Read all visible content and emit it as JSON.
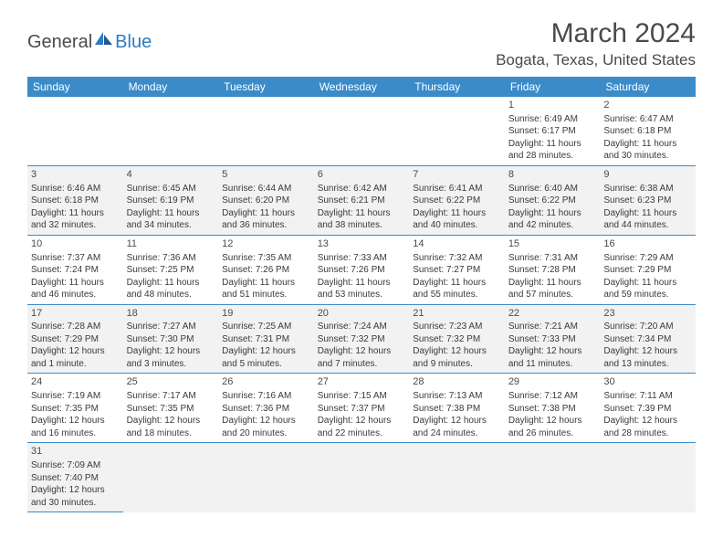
{
  "logo": {
    "text1": "General",
    "text2": "Blue"
  },
  "title": "March 2024",
  "location": "Bogata, Texas, United States",
  "header_bg": "#3b8bc9",
  "header_fg": "#ffffff",
  "row_alt_bg": "#f2f2f2",
  "border_color": "#3b8bc9",
  "daynames": [
    "Sunday",
    "Monday",
    "Tuesday",
    "Wednesday",
    "Thursday",
    "Friday",
    "Saturday"
  ],
  "weeks": [
    [
      null,
      null,
      null,
      null,
      null,
      {
        "d": "1",
        "sr": "6:49 AM",
        "ss": "6:17 PM",
        "dl": "11 hours and 28 minutes."
      },
      {
        "d": "2",
        "sr": "6:47 AM",
        "ss": "6:18 PM",
        "dl": "11 hours and 30 minutes."
      }
    ],
    [
      {
        "d": "3",
        "sr": "6:46 AM",
        "ss": "6:18 PM",
        "dl": "11 hours and 32 minutes."
      },
      {
        "d": "4",
        "sr": "6:45 AM",
        "ss": "6:19 PM",
        "dl": "11 hours and 34 minutes."
      },
      {
        "d": "5",
        "sr": "6:44 AM",
        "ss": "6:20 PM",
        "dl": "11 hours and 36 minutes."
      },
      {
        "d": "6",
        "sr": "6:42 AM",
        "ss": "6:21 PM",
        "dl": "11 hours and 38 minutes."
      },
      {
        "d": "7",
        "sr": "6:41 AM",
        "ss": "6:22 PM",
        "dl": "11 hours and 40 minutes."
      },
      {
        "d": "8",
        "sr": "6:40 AM",
        "ss": "6:22 PM",
        "dl": "11 hours and 42 minutes."
      },
      {
        "d": "9",
        "sr": "6:38 AM",
        "ss": "6:23 PM",
        "dl": "11 hours and 44 minutes."
      }
    ],
    [
      {
        "d": "10",
        "sr": "7:37 AM",
        "ss": "7:24 PM",
        "dl": "11 hours and 46 minutes."
      },
      {
        "d": "11",
        "sr": "7:36 AM",
        "ss": "7:25 PM",
        "dl": "11 hours and 48 minutes."
      },
      {
        "d": "12",
        "sr": "7:35 AM",
        "ss": "7:26 PM",
        "dl": "11 hours and 51 minutes."
      },
      {
        "d": "13",
        "sr": "7:33 AM",
        "ss": "7:26 PM",
        "dl": "11 hours and 53 minutes."
      },
      {
        "d": "14",
        "sr": "7:32 AM",
        "ss": "7:27 PM",
        "dl": "11 hours and 55 minutes."
      },
      {
        "d": "15",
        "sr": "7:31 AM",
        "ss": "7:28 PM",
        "dl": "11 hours and 57 minutes."
      },
      {
        "d": "16",
        "sr": "7:29 AM",
        "ss": "7:29 PM",
        "dl": "11 hours and 59 minutes."
      }
    ],
    [
      {
        "d": "17",
        "sr": "7:28 AM",
        "ss": "7:29 PM",
        "dl": "12 hours and 1 minute."
      },
      {
        "d": "18",
        "sr": "7:27 AM",
        "ss": "7:30 PM",
        "dl": "12 hours and 3 minutes."
      },
      {
        "d": "19",
        "sr": "7:25 AM",
        "ss": "7:31 PM",
        "dl": "12 hours and 5 minutes."
      },
      {
        "d": "20",
        "sr": "7:24 AM",
        "ss": "7:32 PM",
        "dl": "12 hours and 7 minutes."
      },
      {
        "d": "21",
        "sr": "7:23 AM",
        "ss": "7:32 PM",
        "dl": "12 hours and 9 minutes."
      },
      {
        "d": "22",
        "sr": "7:21 AM",
        "ss": "7:33 PM",
        "dl": "12 hours and 11 minutes."
      },
      {
        "d": "23",
        "sr": "7:20 AM",
        "ss": "7:34 PM",
        "dl": "12 hours and 13 minutes."
      }
    ],
    [
      {
        "d": "24",
        "sr": "7:19 AM",
        "ss": "7:35 PM",
        "dl": "12 hours and 16 minutes."
      },
      {
        "d": "25",
        "sr": "7:17 AM",
        "ss": "7:35 PM",
        "dl": "12 hours and 18 minutes."
      },
      {
        "d": "26",
        "sr": "7:16 AM",
        "ss": "7:36 PM",
        "dl": "12 hours and 20 minutes."
      },
      {
        "d": "27",
        "sr": "7:15 AM",
        "ss": "7:37 PM",
        "dl": "12 hours and 22 minutes."
      },
      {
        "d": "28",
        "sr": "7:13 AM",
        "ss": "7:38 PM",
        "dl": "12 hours and 24 minutes."
      },
      {
        "d": "29",
        "sr": "7:12 AM",
        "ss": "7:38 PM",
        "dl": "12 hours and 26 minutes."
      },
      {
        "d": "30",
        "sr": "7:11 AM",
        "ss": "7:39 PM",
        "dl": "12 hours and 28 minutes."
      }
    ],
    [
      {
        "d": "31",
        "sr": "7:09 AM",
        "ss": "7:40 PM",
        "dl": "12 hours and 30 minutes."
      },
      null,
      null,
      null,
      null,
      null,
      null
    ]
  ]
}
